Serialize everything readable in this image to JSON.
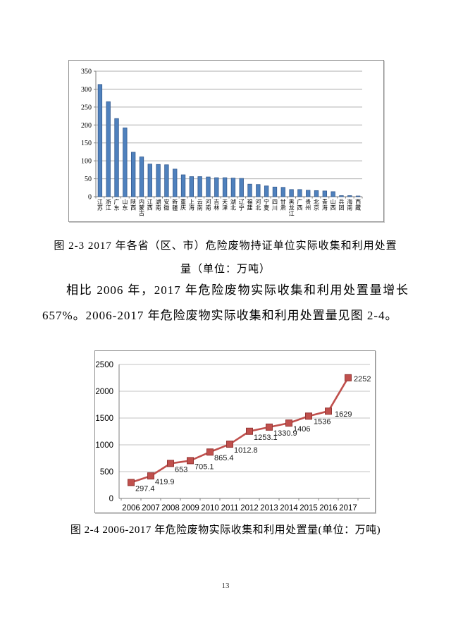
{
  "document": {
    "page_number": "13"
  },
  "figure_2_3": {
    "caption": "图 2-3  2017 年各省（区、市）危险废物持证单位实际收集和利用处置量（单位：万吨）"
  },
  "body_text": {
    "paragraph": "相比 2006 年，2017 年危险废物实际收集和利用处置量增长 657%。2006-2017 年危险废物实际收集和利用处置量见图 2-4。"
  },
  "figure_2_4": {
    "caption": "图 2-4 2006-2017 年危险废物实际收集和利用处置量(单位：万吨)"
  },
  "chart_data": [
    {
      "id": "provinces-bar-2017",
      "type": "bar",
      "title": "2017 年各省（区、市）危险废物持证单位实际收集和利用处置量",
      "unit": "万吨",
      "categories": [
        "江苏",
        "浙江",
        "广东",
        "山东",
        "陕西",
        "内蒙古",
        "江西",
        "湖南",
        "安徽",
        "新疆",
        "重庆",
        "上海",
        "云南",
        "河南",
        "吉林",
        "天津",
        "湖北",
        "辽宁",
        "福建",
        "河北",
        "宁夏",
        "四川",
        "甘肃",
        "黑龙江",
        "广西",
        "贵州",
        "北京",
        "青海",
        "山西",
        "兵团",
        "海南",
        "西藏"
      ],
      "values": [
        313,
        265,
        218,
        192,
        124,
        111,
        91,
        90,
        89,
        77,
        61,
        56,
        56,
        55,
        53,
        53,
        52,
        51,
        35,
        34,
        30,
        27,
        26,
        20,
        20,
        18,
        17,
        16,
        14,
        3,
        3,
        2
      ],
      "ylim": [
        0,
        350
      ],
      "ytick_step": 50,
      "grid": true,
      "legend": "none",
      "bar_color": "#4f81bd",
      "bar_border": "#33588c"
    },
    {
      "id": "trend-line-2006-2017",
      "type": "line",
      "title": "2006-2017 年危险废物实际收集和利用处置量",
      "unit": "万吨",
      "categories": [
        "2006",
        "2007",
        "2008",
        "2009",
        "2010",
        "2011",
        "2012",
        "2013",
        "2014",
        "2015",
        "2016",
        "2017"
      ],
      "values": [
        297.4,
        419.9,
        653,
        705.1,
        865.4,
        1012.8,
        1253.1,
        1330.9,
        1406,
        1536,
        1629,
        2252
      ],
      "labels": [
        "297.4",
        "419.9",
        "653",
        "705.1",
        "865.4",
        "1012.8",
        "1253.1",
        "1330.9",
        "1406",
        "1536",
        "1629",
        "2252"
      ],
      "ylim": [
        0,
        2500
      ],
      "ytick_step": 500,
      "grid": true,
      "legend": "none",
      "marker": "square",
      "line_color": "#c0504d",
      "marker_border": "#943634"
    }
  ]
}
